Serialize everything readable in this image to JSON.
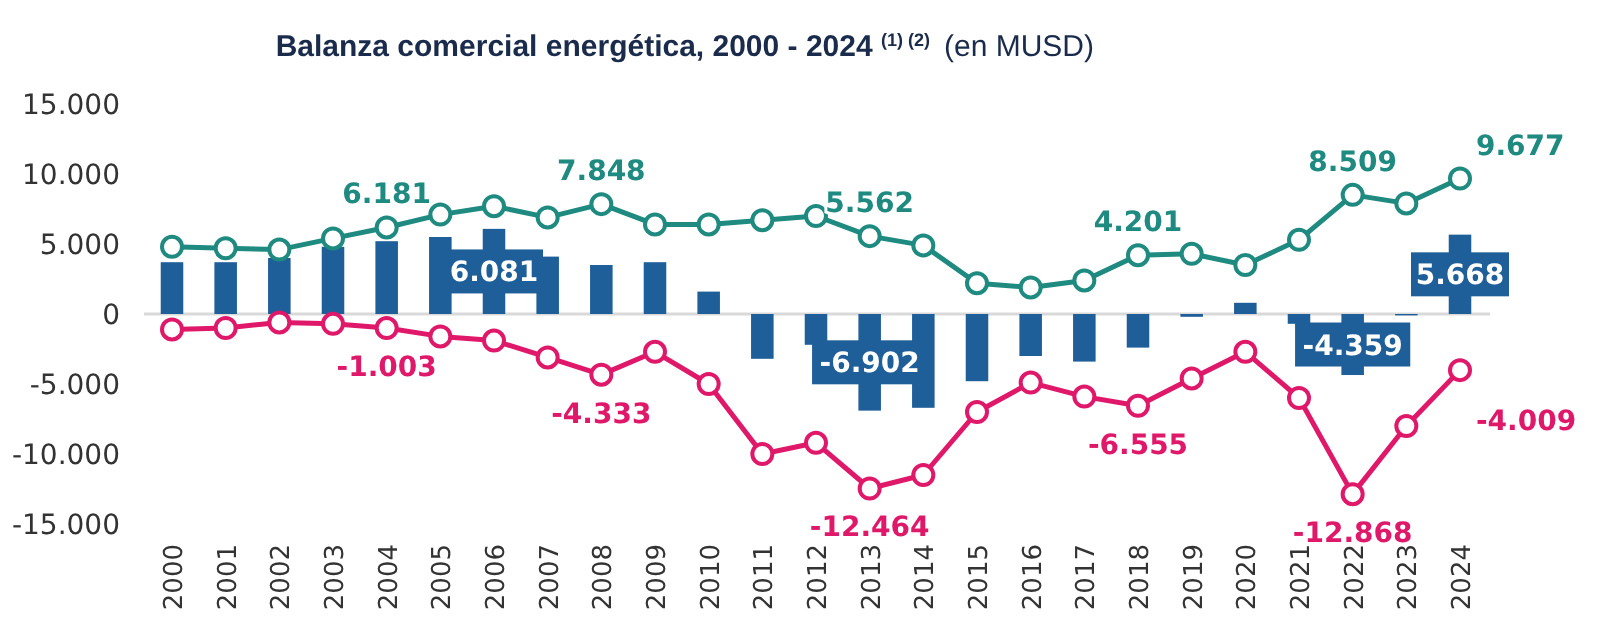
{
  "chart_data": {
    "type": "bar",
    "title": "Balanza comercial energética, 2000 - 2024 $^{(1) (2)}$",
    "subtitle": "(en MUSD)",
    "categories": [
      "2000",
      "2001",
      "2002",
      "2003",
      "2004",
      "2005",
      "2006",
      "2007",
      "2008",
      "2009",
      "2010",
      "2011",
      "2012",
      "2013",
      "2014",
      "2015",
      "2016",
      "2017",
      "2018",
      "2019",
      "2020",
      "2021",
      "2022",
      "2023",
      "2024"
    ],
    "ylim": [
      -15000,
      15000
    ],
    "yticks": [
      {
        "value": -15000,
        "label": "-15.000"
      },
      {
        "value": -10000,
        "label": "-10.000"
      },
      {
        "value": -5000,
        "label": "-5.000"
      },
      {
        "value": 0,
        "label": "0"
      },
      {
        "value": 5000,
        "label": "5.000"
      },
      {
        "value": 10000,
        "label": "10.000"
      },
      {
        "value": 15000,
        "label": "15.000"
      }
    ],
    "grid": false,
    "ref_lines": [
      {
        "axis": "y",
        "value": 0,
        "color": "#d9d9d9"
      }
    ],
    "series": [
      {
        "color": "#1f5f99",
        "values": [
          3700,
          3700,
          4000,
          4800,
          5200,
          5500,
          6081,
          4100,
          3500,
          3700,
          1600,
          -3200,
          -2200,
          -6902,
          -6700,
          -4800,
          -3000,
          -3400,
          -2400,
          -200,
          800,
          -700,
          -4359,
          -100,
          5668
        ],
        "value_labels": [
          null,
          null,
          null,
          null,
          null,
          null,
          "6.081",
          null,
          null,
          null,
          null,
          null,
          null,
          "-6.902",
          null,
          null,
          null,
          null,
          null,
          null,
          null,
          null,
          "-4.359",
          null,
          "5.668"
        ]
      },
      {
        "type": "line",
        "color": "#1e8a80",
        "marker": "circle",
        "values": [
          4800,
          4700,
          4600,
          5400,
          6181,
          7100,
          7700,
          6900,
          7848,
          6400,
          6400,
          6700,
          7000,
          5562,
          4900,
          2200,
          1900,
          2400,
          4201,
          4300,
          3500,
          5300,
          8509,
          7900,
          9677
        ],
        "value_labels": [
          null,
          null,
          null,
          null,
          "6.181",
          null,
          null,
          null,
          "7.848",
          null,
          null,
          null,
          null,
          "5.562",
          null,
          null,
          null,
          null,
          "4.201",
          null,
          null,
          null,
          "8.509",
          null,
          "9.677"
        ]
      },
      {
        "type": "line",
        "color": "#e0186a",
        "marker": "circle",
        "values": [
          -1100,
          -1000,
          -600,
          -700,
          -1003,
          -1600,
          -1900,
          -3100,
          -4333,
          -2700,
          -5000,
          -10000,
          -9200,
          -12464,
          -11500,
          -7000,
          -4900,
          -5900,
          -6555,
          -4600,
          -2700,
          -6000,
          -12868,
          -8000,
          -4009
        ],
        "value_labels": [
          null,
          null,
          null,
          null,
          "-1.003",
          null,
          null,
          null,
          "-4.333",
          null,
          null,
          null,
          null,
          "-12.464",
          null,
          null,
          null,
          null,
          "-6.555",
          null,
          null,
          null,
          "-12.868",
          null,
          "-4.009"
        ]
      }
    ]
  }
}
